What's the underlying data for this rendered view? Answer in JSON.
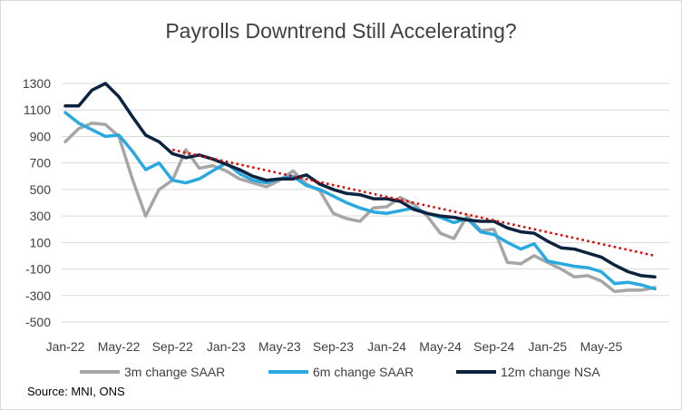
{
  "chart_data": {
    "type": "line",
    "title": "Payrolls Downtrend Still Accelerating?",
    "xlabel": "",
    "ylabel": "",
    "ylim": [
      -500,
      1300
    ],
    "yticks": [
      1300,
      1100,
      900,
      700,
      500,
      300,
      100,
      -100,
      -300,
      -500
    ],
    "xtick_labels": [
      "Jan-22",
      "May-22",
      "Sep-22",
      "Jan-23",
      "May-23",
      "Sep-23",
      "Jan-24",
      "May-24",
      "Sep-24",
      "Jan-25",
      "May-25"
    ],
    "x_start": "Jan-22",
    "x_end": "Jul-25",
    "grid": true,
    "legend_position": "bottom",
    "series": [
      {
        "name": "3m change SAAR",
        "color": "#a6a6a6",
        "values": [
          860,
          960,
          1000,
          990,
          900,
          580,
          300,
          500,
          570,
          800,
          660,
          680,
          640,
          580,
          550,
          520,
          570,
          640,
          540,
          490,
          320,
          280,
          260,
          360,
          370,
          440,
          390,
          300,
          170,
          130,
          300,
          190,
          200,
          -50,
          -60,
          0,
          -50,
          -100,
          -160,
          -150,
          -190,
          -270,
          -260,
          -260,
          -240
        ]
      },
      {
        "name": "6m change SAAR",
        "color": "#2aa8e0",
        "values": [
          1080,
          1000,
          950,
          900,
          910,
          790,
          650,
          700,
          570,
          550,
          580,
          640,
          700,
          620,
          570,
          550,
          580,
          600,
          530,
          500,
          450,
          400,
          360,
          330,
          320,
          340,
          360,
          320,
          290,
          250,
          280,
          180,
          160,
          100,
          50,
          90,
          -40,
          -60,
          -80,
          -90,
          -120,
          -210,
          -200,
          -220,
          -250
        ]
      },
      {
        "name": "12m change NSA",
        "color": "#0c2340",
        "values": [
          1130,
          1130,
          1250,
          1300,
          1200,
          1050,
          910,
          860,
          770,
          740,
          760,
          730,
          690,
          650,
          600,
          570,
          580,
          580,
          610,
          540,
          500,
          470,
          460,
          430,
          430,
          410,
          350,
          320,
          300,
          290,
          270,
          260,
          260,
          210,
          180,
          170,
          110,
          60,
          50,
          20,
          -10,
          -70,
          -120,
          -150,
          -160
        ]
      },
      {
        "name": "Trend",
        "style": "dotted",
        "color": "#e00000",
        "show_in_legend": false,
        "start_index": 8,
        "values": [
          800,
          0
        ]
      }
    ]
  },
  "source_text": "Source: MNI, ONS"
}
